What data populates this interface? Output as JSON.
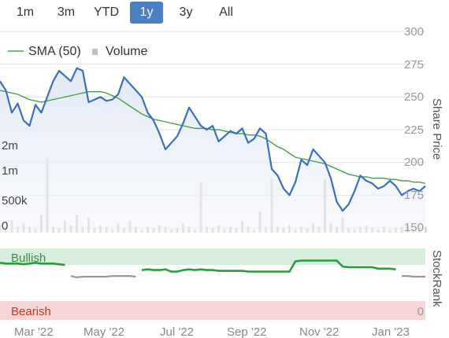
{
  "range_buttons": [
    "1m",
    "3m",
    "YTD",
    "1y",
    "3y",
    "All"
  ],
  "active_range": "1y",
  "legend": {
    "sma_label": "SMA (50)",
    "volume_label": "Volume"
  },
  "chart_data": {
    "type": "line",
    "x_ticks": [
      "Mar '22",
      "May '22",
      "Jul '22",
      "Sep '22",
      "Nov '22",
      "Jan '23"
    ],
    "y_right_label": "Share Price",
    "y_ticks": [
      150,
      175,
      200,
      225,
      250,
      275,
      300
    ],
    "ylim": [
      150,
      300
    ],
    "volume_ticks": [
      "0",
      "500k",
      "1m",
      "2m"
    ],
    "colors": {
      "price": "#3a6fbf",
      "sma": "#4aa04a",
      "volume": "#c8c8c8",
      "bullish": "#d6eedb",
      "bearish": "#f7d5d8",
      "grey": "#999999"
    },
    "series": [
      {
        "name": "Share Price",
        "values": [
          262,
          255,
          238,
          245,
          232,
          228,
          244,
          238,
          250,
          262,
          270,
          266,
          262,
          272,
          270,
          246,
          248,
          250,
          247,
          248,
          252,
          265,
          260,
          255,
          250,
          238,
          232,
          222,
          210,
          215,
          220,
          230,
          242,
          235,
          228,
          225,
          228,
          216,
          220,
          224,
          222,
          226,
          215,
          218,
          226,
          222,
          195,
          190,
          180,
          175,
          185,
          202,
          198,
          210,
          205,
          200,
          188,
          170,
          163,
          168,
          178,
          190,
          186,
          184,
          180,
          182,
          186,
          182,
          175,
          178,
          180,
          178,
          182
        ]
      },
      {
        "name": "SMA (50)",
        "values": [
          255,
          254,
          253,
          252,
          250,
          248,
          247,
          246,
          247,
          248,
          249,
          250,
          251,
          252,
          253,
          254,
          254,
          254,
          253,
          251,
          249,
          246,
          243,
          240,
          237,
          235,
          233,
          232,
          231,
          230,
          229,
          228,
          227,
          226,
          226,
          226,
          225,
          225,
          224,
          223,
          222,
          222,
          221,
          221,
          220,
          218,
          215,
          212,
          210,
          207,
          204,
          203,
          202,
          201,
          200,
          199,
          197,
          195,
          193,
          191,
          190,
          189,
          189,
          188,
          188,
          188,
          187,
          187,
          186,
          186,
          185,
          185,
          184
        ]
      }
    ],
    "volume": [
      0.12,
      0.08,
      0.2,
      0.1,
      0.15,
      0.1,
      0.06,
      0.3,
      1.25,
      0.1,
      0.08,
      0.2,
      0.12,
      0.3,
      0.1,
      0.25,
      0.08,
      0.12,
      0.1,
      0.06,
      0.15,
      0.08,
      0.2,
      0.1,
      0.05,
      0.1,
      0.08,
      0.12,
      0.1,
      0.06,
      0.08,
      0.15,
      0.1,
      0.05,
      0.85,
      0.1,
      0.08,
      0.12,
      0.06,
      0.1,
      0.08,
      0.2,
      0.1,
      0.05,
      0.35,
      0.1,
      0.9,
      0.1,
      0.08,
      0.12,
      0.06,
      0.1,
      0.08,
      0.15,
      0.1,
      0.9,
      0.15,
      0.1,
      0.25,
      0.08,
      0.06,
      0.1,
      0.12,
      0.08,
      0.05,
      0.1,
      0.06,
      0.08,
      0.1,
      0.12,
      0.06,
      0.08,
      0.1
    ],
    "stockrank_label": "StockRank",
    "bullish_label": "Bullish",
    "bearish_label": "Bearish",
    "bearish_value": "0",
    "stockrank": [
      76,
      75,
      75,
      75,
      74,
      75,
      76,
      75,
      75,
      75,
      74,
      73,
      58,
      56,
      57,
      57,
      57,
      57,
      57,
      58,
      58,
      58,
      58,
      57,
      66,
      67,
      66,
      66,
      67,
      64,
      64,
      66,
      67,
      66,
      67,
      66,
      66,
      65,
      65,
      65,
      65,
      65,
      64,
      64,
      64,
      64,
      64,
      64,
      64,
      64,
      78,
      79,
      79,
      79,
      79,
      79,
      79,
      79,
      71,
      70,
      70,
      70,
      70,
      70,
      68,
      68,
      68,
      67,
      58,
      58,
      57,
      57,
      57
    ]
  }
}
